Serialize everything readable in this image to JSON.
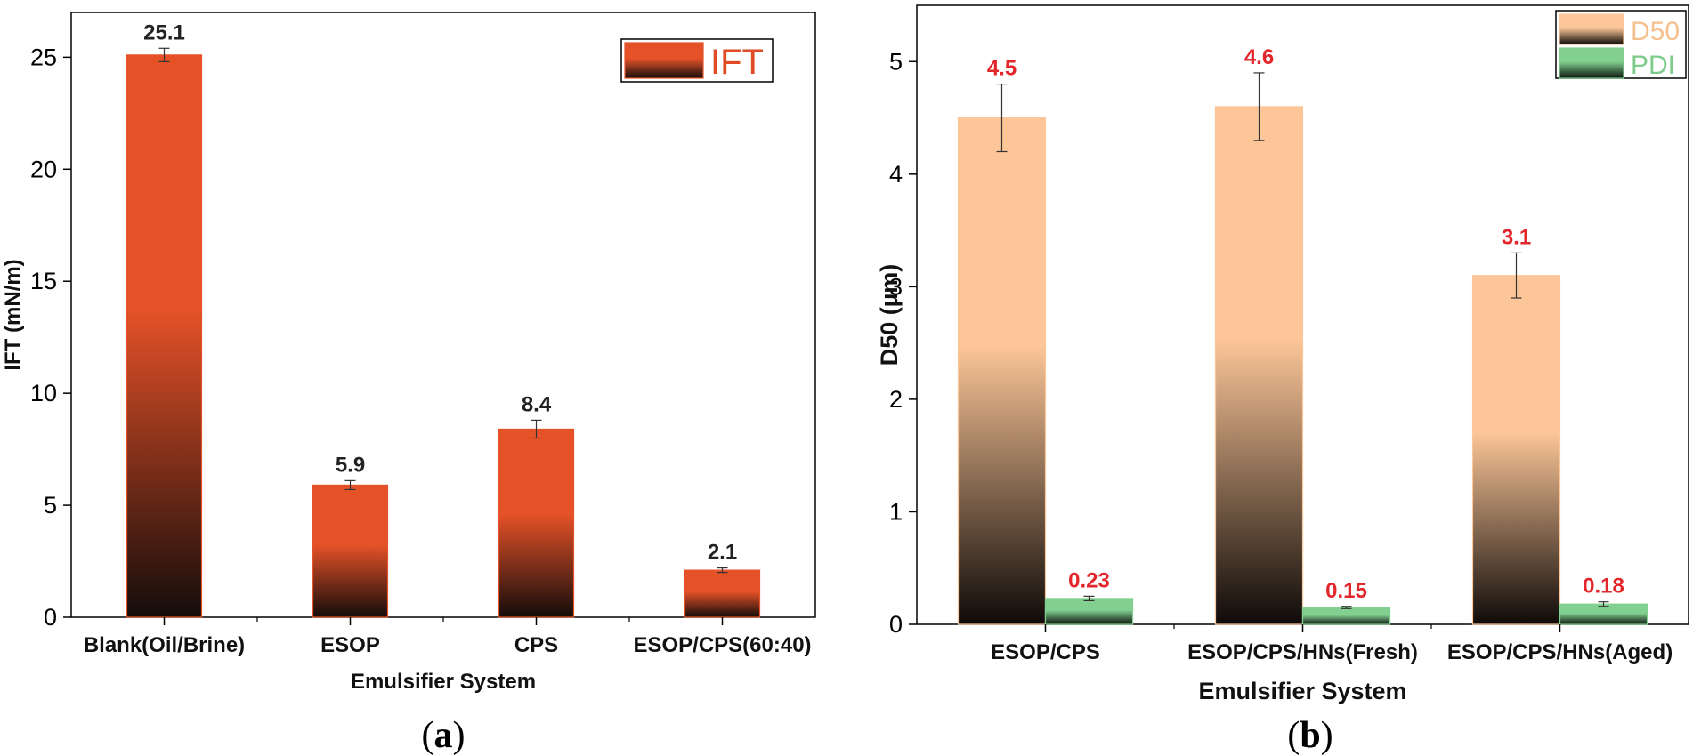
{
  "chart_data": [
    {
      "panel_label": "a",
      "type": "bar",
      "xlabel": "Emulsifier System",
      "ylabel": "IFT (mN/m)",
      "ylim": [
        0,
        27
      ],
      "yticks": [
        0,
        5,
        10,
        15,
        20,
        25
      ],
      "ytick_labels": [
        "0",
        "5",
        "10",
        "15",
        "20",
        "25"
      ],
      "categories": [
        "Blank(Oil/Brine)",
        "ESOP",
        "CPS",
        "ESOP/CPS(60:40)"
      ],
      "legend_position": "top-right",
      "series": [
        {
          "name": "IFT",
          "values": [
            25.1,
            5.9,
            8.4,
            2.1
          ],
          "errors": [
            0.3,
            0.2,
            0.4,
            0.1
          ],
          "labels": [
            "25.1",
            "5.9",
            "8.4",
            "2.1"
          ],
          "color_top": "#e65228",
          "color_bottom": "#140c0a",
          "legend_text_color": "#e04a24",
          "value_label_color": "#222222"
        }
      ]
    },
    {
      "panel_label": "b",
      "type": "bar",
      "xlabel": "Emulsifier System",
      "ylabel": "D50 (µm)",
      "ylim": [
        0,
        5.5
      ],
      "yticks": [
        0,
        1,
        2,
        3,
        4,
        5
      ],
      "ytick_labels": [
        "0",
        "1",
        "2",
        "3",
        "4",
        "5"
      ],
      "categories": [
        "ESOP/CPS",
        "ESOP/CPS/HNs(Fresh)",
        "ESOP/CPS/HNs(Aged)"
      ],
      "legend_position": "top-right",
      "series": [
        {
          "name": "D50",
          "values": [
            4.5,
            4.6,
            3.1
          ],
          "errors": [
            0.3,
            0.3,
            0.2
          ],
          "labels": [
            "4.5",
            "4.6",
            "3.1"
          ],
          "color_top": "#fcc698",
          "color_bottom": "#0e0a08",
          "legend_text_color": "#f5c08e",
          "value_label_color": "#e3262a"
        },
        {
          "name": "PDI",
          "values": [
            0.23,
            0.15,
            0.18
          ],
          "errors": [
            0.02,
            0.01,
            0.02
          ],
          "labels": [
            "0.23",
            "0.15",
            "0.18"
          ],
          "color_top": "#82d090",
          "color_bottom": "#0c140e",
          "legend_text_color": "#7ccb8a",
          "value_label_color": "#e3262a"
        }
      ]
    }
  ]
}
